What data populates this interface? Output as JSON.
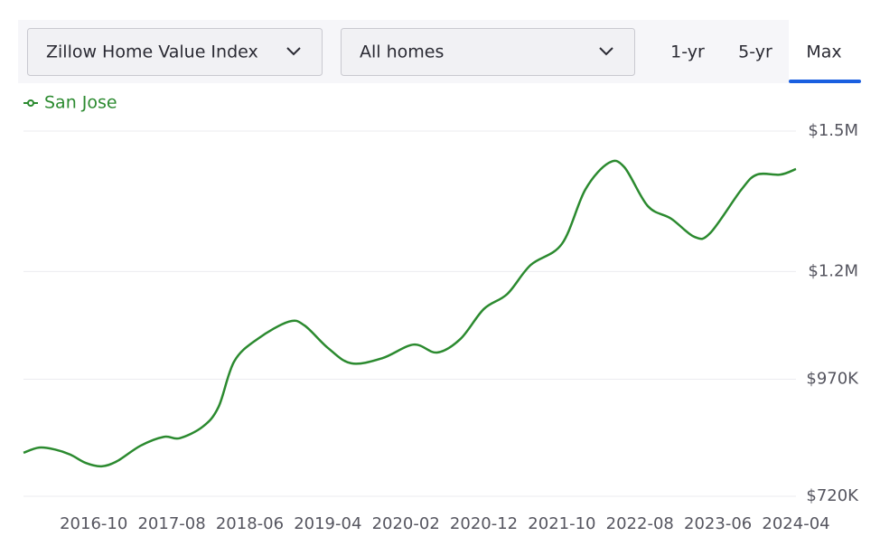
{
  "controls": {
    "index_select": "Zillow Home Value Index",
    "home_type_select": "All homes",
    "ranges": [
      "1-yr",
      "5-yr",
      "Max"
    ],
    "active_range": "Max"
  },
  "chart_data": {
    "type": "line",
    "x": [
      "2016-01",
      "2016-03",
      "2016-05",
      "2016-07",
      "2016-09",
      "2016-11",
      "2017-01",
      "2017-04",
      "2017-07",
      "2017-09",
      "2017-12",
      "2018-02",
      "2018-04",
      "2018-07",
      "2018-11",
      "2019-01",
      "2019-04",
      "2019-07",
      "2019-11",
      "2020-03",
      "2020-06",
      "2020-09",
      "2020-12",
      "2021-03",
      "2021-06",
      "2021-10",
      "2022-01",
      "2022-04",
      "2022-06",
      "2022-09",
      "2022-12",
      "2023-03",
      "2023-05",
      "2023-09",
      "2023-11",
      "2024-02",
      "2024-04"
    ],
    "series": [
      {
        "name": "San Jose",
        "color": "#2b8a2f",
        "values": [
          813000,
          824000,
          820000,
          809000,
          791000,
          784000,
          795000,
          828000,
          847000,
          844000,
          869000,
          911000,
          1008000,
          1056000,
          1093000,
          1085000,
          1037000,
          1004000,
          1015000,
          1044000,
          1027000,
          1056000,
          1120000,
          1152000,
          1214000,
          1259000,
          1375000,
          1432000,
          1423000,
          1340000,
          1313000,
          1274000,
          1282000,
          1375000,
          1407000,
          1407000,
          1419000
        ]
      }
    ],
    "xlim": [
      "2016-01",
      "2024-04"
    ],
    "xticks": [
      "2016-10",
      "2017-08",
      "2018-06",
      "2019-04",
      "2020-02",
      "2020-12",
      "2021-10",
      "2022-08",
      "2023-06",
      "2024-04"
    ],
    "ylim": [
      720000,
      1500000
    ],
    "yticks": [
      {
        "value": 720000,
        "label": "$720K"
      },
      {
        "value": 970000,
        "label": "$970K"
      },
      {
        "value": 1200000,
        "label": "$1.2M"
      },
      {
        "value": 1500000,
        "label": "$1.5M"
      }
    ],
    "grid": true,
    "legend": "top-left"
  }
}
